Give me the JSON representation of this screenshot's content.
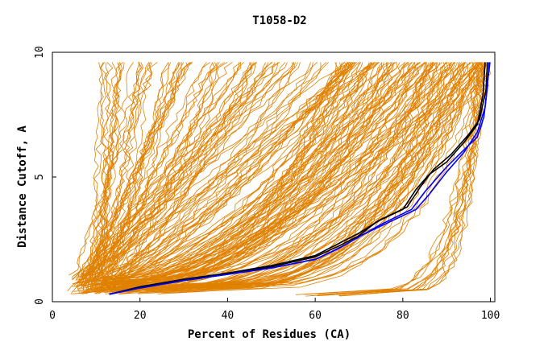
{
  "chart_data": {
    "type": "line",
    "title": "T1058-D2",
    "xlabel": "Percent of Residues (CA)",
    "ylabel": "Distance Cutoff, A",
    "xlim": [
      0,
      101
    ],
    "ylim": [
      0,
      10
    ],
    "x_ticks": [
      0,
      20,
      40,
      60,
      80,
      100
    ],
    "y_ticks": [
      0,
      5,
      10
    ],
    "grid": false,
    "colors": {
      "background_series": "#e08000",
      "highlight_black": "#000000",
      "highlight_blue": "#0000ff"
    },
    "highlighted_series": [
      {
        "color": "#0000ff",
        "x": [
          13,
          20,
          30,
          40,
          50,
          60,
          65,
          70,
          75,
          82,
          85,
          90,
          94,
          97,
          98.5,
          99.3,
          99.7
        ],
        "y": [
          0.3,
          0.55,
          0.85,
          1.1,
          1.35,
          1.7,
          2.1,
          2.6,
          3.1,
          3.7,
          4.4,
          5.4,
          6.1,
          6.6,
          7.4,
          8.6,
          9.6
        ]
      },
      {
        "color": "#000000",
        "x": [
          13,
          20,
          30,
          40,
          50,
          60,
          65,
          70,
          74,
          80,
          83,
          86,
          90,
          94,
          97,
          98.3,
          98.8
        ],
        "y": [
          0.3,
          0.55,
          0.85,
          1.1,
          1.4,
          1.8,
          2.2,
          2.65,
          3.2,
          3.7,
          4.5,
          5.1,
          5.6,
          6.4,
          7.1,
          8.3,
          9.6
        ]
      },
      {
        "color": "#000000",
        "x": [
          13,
          20,
          30,
          40,
          50,
          60,
          65,
          70,
          75,
          81,
          84,
          87,
          91,
          95,
          97.5,
          99,
          99.3
        ],
        "y": [
          0.3,
          0.6,
          0.9,
          1.15,
          1.45,
          1.85,
          2.3,
          2.75,
          3.3,
          3.8,
          4.6,
          5.3,
          5.9,
          6.7,
          7.3,
          8.5,
          9.6
        ]
      },
      {
        "color": "#0000ff",
        "x": [
          13,
          20,
          30,
          40,
          50,
          60,
          66,
          71,
          77,
          83,
          86,
          90,
          94,
          97,
          98.8,
          99.4,
          99.9
        ],
        "y": [
          0.3,
          0.55,
          0.85,
          1.1,
          1.35,
          1.7,
          2.2,
          2.7,
          3.2,
          3.7,
          4.3,
          5.2,
          6.0,
          6.8,
          7.8,
          8.9,
          9.6
        ]
      }
    ]
  }
}
